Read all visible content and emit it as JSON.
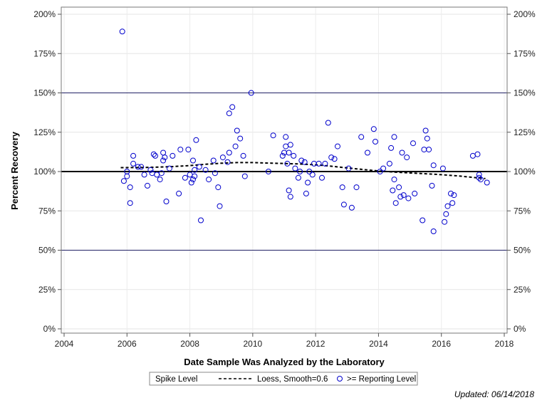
{
  "chart_data": {
    "type": "scatter",
    "xlabel": "Date Sample Was Analyzed by the Laboratory",
    "ylabel": "Percent Recovery",
    "xlim": [
      2004,
      2018
    ],
    "ylim": [
      0,
      200
    ],
    "x_ticks": [
      2004,
      2006,
      2008,
      2010,
      2012,
      2014,
      2016,
      2018
    ],
    "y_ticks": [
      0,
      25,
      50,
      75,
      100,
      125,
      150,
      175,
      200
    ],
    "y_tick_labels": [
      "0%",
      "25%",
      "50%",
      "75%",
      "100%",
      "125%",
      "150%",
      "175%",
      "200%"
    ],
    "grid": true,
    "reference_lines": {
      "spike_level": 100,
      "bounds": [
        50,
        150
      ]
    },
    "legend": {
      "position": "bottom",
      "entries": [
        "Spike Level",
        "Loess, Smooth=0.6",
        ">= Reporting Level"
      ]
    },
    "series": [
      {
        "name": ">= Reporting Level",
        "kind": "points",
        "color": "#0000cc",
        "x": [
          2005.85,
          2005.9,
          2006.0,
          2006.0,
          2006.1,
          2006.1,
          2006.2,
          2006.2,
          2006.35,
          2006.45,
          2006.55,
          2006.65,
          2006.75,
          2006.8,
          2006.85,
          2006.9,
          2006.95,
          2007.05,
          2007.1,
          2007.15,
          2007.15,
          2007.2,
          2007.25,
          2007.35,
          2007.45,
          2007.65,
          2007.7,
          2007.85,
          2007.95,
          2008.0,
          2008.05,
          2008.1,
          2008.1,
          2008.15,
          2008.15,
          2008.2,
          2008.3,
          2008.35,
          2008.5,
          2008.6,
          2008.75,
          2008.8,
          2008.9,
          2008.95,
          2009.05,
          2009.2,
          2009.25,
          2009.25,
          2009.35,
          2009.45,
          2009.5,
          2009.6,
          2009.7,
          2009.75,
          2009.95,
          2010.5,
          2010.65,
          2010.95,
          2011.0,
          2011.05,
          2011.05,
          2011.1,
          2011.15,
          2011.15,
          2011.2,
          2011.2,
          2011.3,
          2011.35,
          2011.45,
          2011.5,
          2011.55,
          2011.65,
          2011.7,
          2011.75,
          2011.8,
          2011.9,
          2011.95,
          2012.1,
          2012.2,
          2012.3,
          2012.4,
          2012.5,
          2012.6,
          2012.7,
          2012.85,
          2012.9,
          2013.05,
          2013.15,
          2013.3,
          2013.45,
          2013.65,
          2013.85,
          2013.9,
          2014.05,
          2014.15,
          2014.35,
          2014.4,
          2014.45,
          2014.5,
          2014.5,
          2014.55,
          2014.65,
          2014.7,
          2014.75,
          2014.8,
          2014.9,
          2014.95,
          2015.1,
          2015.15,
          2015.4,
          2015.45,
          2015.5,
          2015.55,
          2015.6,
          2015.7,
          2015.75,
          2015.75,
          2016.05,
          2016.1,
          2016.15,
          2016.2,
          2016.3,
          2016.35,
          2016.4,
          2017.0,
          2017.15,
          2017.2,
          2017.2,
          2017.25,
          2017.45
        ],
        "y": [
          189,
          94,
          100,
          97,
          80,
          90,
          110,
          105,
          103,
          103,
          98,
          91,
          101,
          99,
          111,
          110,
          98,
          95,
          99,
          107,
          112,
          109,
          81,
          102,
          110,
          86,
          114,
          96,
          114,
          98,
          93,
          95,
          107,
          101,
          97,
          120,
          103,
          69,
          101,
          95,
          107,
          99,
          90,
          78,
          109,
          106,
          112,
          137,
          141,
          116,
          126,
          121,
          110,
          97,
          150,
          100,
          123,
          110,
          112,
          116,
          122,
          105,
          112,
          88,
          117,
          84,
          110,
          102,
          96,
          100,
          107,
          106,
          86,
          93,
          100,
          98,
          105,
          105,
          96,
          105,
          131,
          109,
          108,
          116,
          90,
          79,
          102,
          77,
          90,
          122,
          112,
          127,
          119,
          100,
          102,
          105,
          115,
          88,
          95,
          122,
          80,
          90,
          84,
          112,
          85,
          109,
          83,
          118,
          86,
          69,
          114,
          126,
          121,
          114,
          91,
          62,
          104,
          102,
          68,
          73,
          78,
          86,
          80,
          85,
          110,
          111,
          98,
          96,
          95,
          93
        ]
      },
      {
        "name": "Loess, Smooth=0.6",
        "kind": "line",
        "color": "#000000",
        "x": [
          2005.8,
          2006.5,
          2007.0,
          2007.5,
          2008.0,
          2008.5,
          2009.0,
          2009.5,
          2010.0,
          2010.5,
          2011.0,
          2011.5,
          2012.0,
          2012.5,
          2013.0,
          2013.5,
          2014.0,
          2014.5,
          2015.0,
          2015.5,
          2016.0,
          2016.5,
          2017.0,
          2017.4
        ],
        "y": [
          102.5,
          102.6,
          102.8,
          103.2,
          103.8,
          104.6,
          105.3,
          105.7,
          105.7,
          105.4,
          105.1,
          104.8,
          104.3,
          103.4,
          102.3,
          101.3,
          100.4,
          99.7,
          99.1,
          98.6,
          98.0,
          97.3,
          96.3,
          95.5
        ]
      }
    ]
  },
  "footer": {
    "updated": "Updated: 06/14/2018"
  }
}
